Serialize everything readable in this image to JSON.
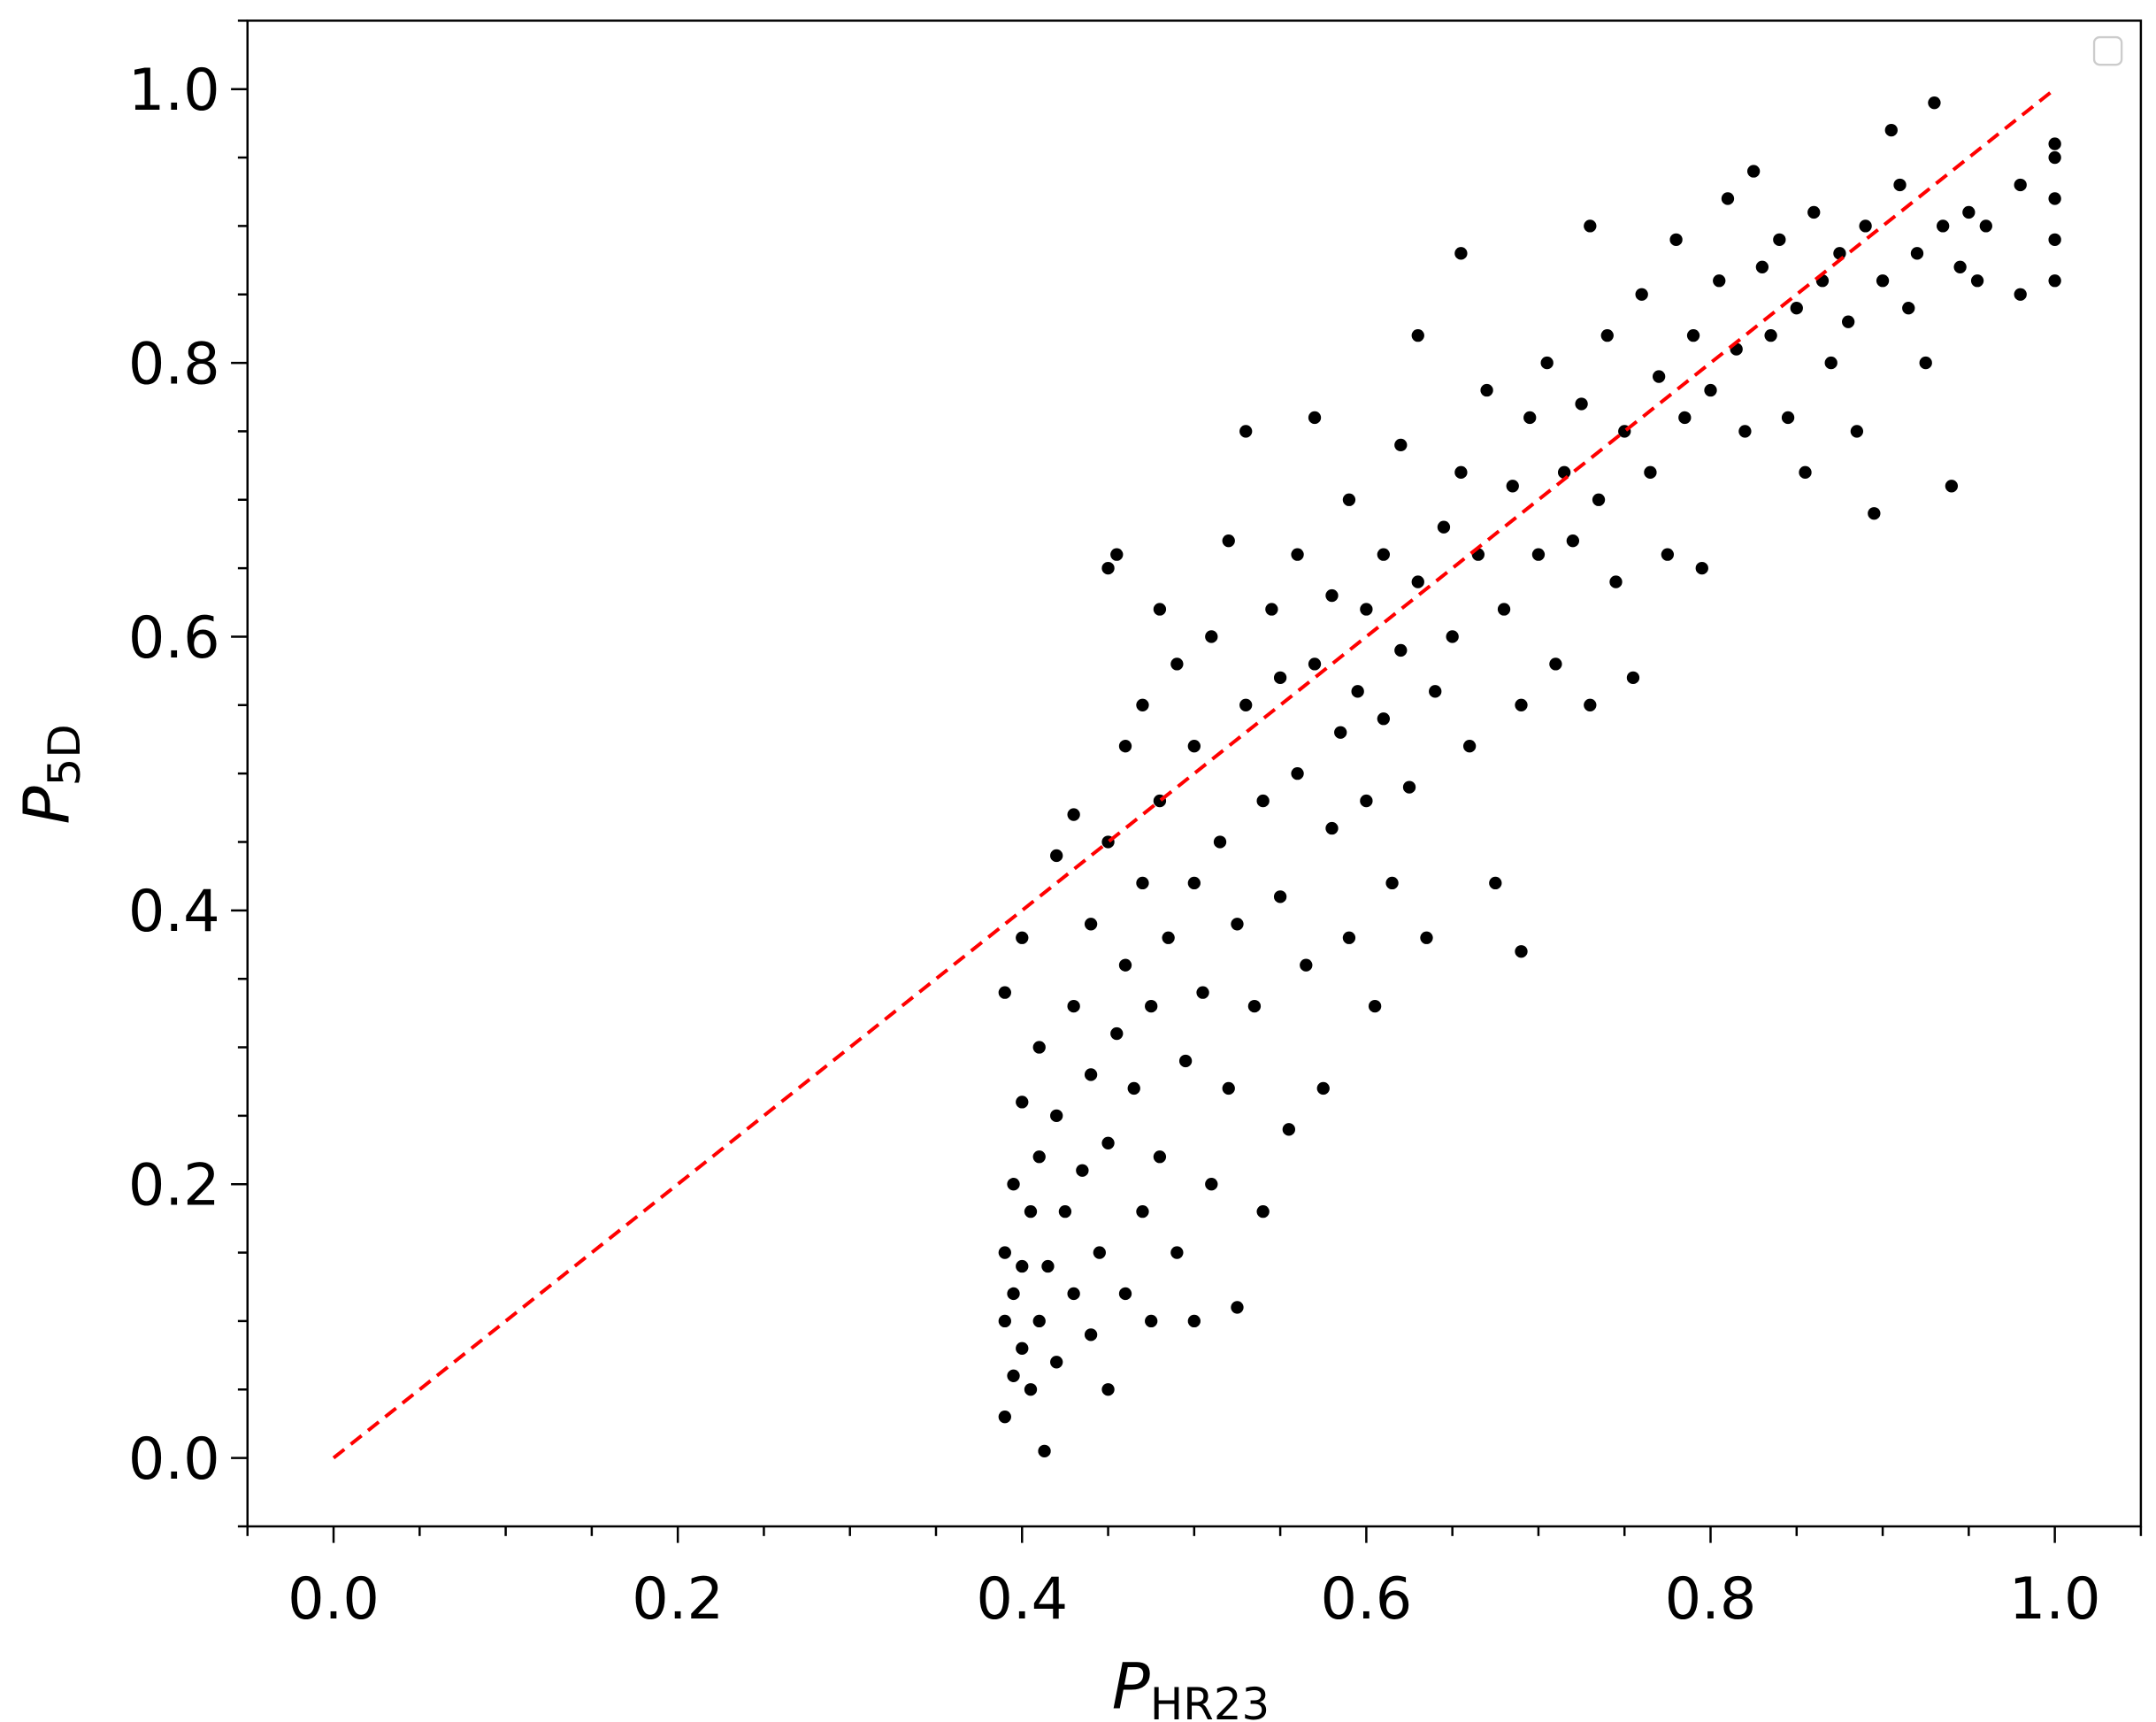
{
  "chart_data": {
    "type": "scatter",
    "xlabel": {
      "main": "P",
      "sub": "HR23"
    },
    "ylabel": {
      "main": "P",
      "sub": "5D"
    },
    "xlim": [
      -0.05,
      1.05
    ],
    "ylim": [
      -0.05,
      1.05
    ],
    "xticks": [
      {
        "value": 0,
        "label": "0.0"
      },
      {
        "value": 0.2,
        "label": "0.2"
      },
      {
        "value": 0.4,
        "label": "0.4"
      },
      {
        "value": 0.6,
        "label": "0.6"
      },
      {
        "value": 0.8,
        "label": "0.8"
      },
      {
        "value": 1,
        "label": "1.0"
      }
    ],
    "yticks": [
      {
        "value": 0,
        "label": "0.0"
      },
      {
        "value": 0.2,
        "label": "0.2"
      },
      {
        "value": 0.4,
        "label": "0.4"
      },
      {
        "value": 0.6,
        "label": "0.6"
      },
      {
        "value": 0.8,
        "label": "0.8"
      },
      {
        "value": 1,
        "label": "1.0"
      }
    ],
    "xminorticks": [
      -0.05,
      0.05,
      0.1,
      0.15,
      0.25,
      0.3,
      0.35,
      0.45,
      0.5,
      0.55,
      0.65,
      0.7,
      0.75,
      0.85,
      0.9,
      0.95,
      1.05
    ],
    "yminorticks": [
      -0.05,
      0.05,
      0.1,
      0.15,
      0.25,
      0.3,
      0.35,
      0.45,
      0.5,
      0.55,
      0.65,
      0.7,
      0.75,
      0.85,
      0.9,
      0.95,
      1.05
    ],
    "legend": "upper right",
    "series": [
      {
        "color": "#000000",
        "x": [
          0.39,
          0.39,
          0.39,
          0.39,
          0.395,
          0.395,
          0.395,
          0.4,
          0.4,
          0.4,
          0.4,
          0.405,
          0.405,
          0.41,
          0.41,
          0.41,
          0.413,
          0.415,
          0.42,
          0.42,
          0.42,
          0.425,
          0.43,
          0.43,
          0.43,
          0.435,
          0.44,
          0.44,
          0.44,
          0.445,
          0.45,
          0.45,
          0.45,
          0.45,
          0.455,
          0.455,
          0.46,
          0.46,
          0.46,
          0.465,
          0.47,
          0.47,
          0.47,
          0.475,
          0.475,
          0.48,
          0.48,
          0.48,
          0.485,
          0.49,
          0.49,
          0.495,
          0.5,
          0.5,
          0.5,
          0.505,
          0.51,
          0.51,
          0.515,
          0.52,
          0.52,
          0.525,
          0.525,
          0.53,
          0.53,
          0.535,
          0.54,
          0.54,
          0.545,
          0.55,
          0.55,
          0.555,
          0.56,
          0.56,
          0.565,
          0.57,
          0.57,
          0.575,
          0.58,
          0.58,
          0.585,
          0.59,
          0.59,
          0.595,
          0.6,
          0.6,
          0.605,
          0.61,
          0.61,
          0.615,
          0.62,
          0.62,
          0.625,
          0.63,
          0.63,
          0.635,
          0.64,
          0.645,
          0.65,
          0.655,
          0.655,
          0.66,
          0.665,
          0.67,
          0.675,
          0.68,
          0.685,
          0.69,
          0.69,
          0.695,
          0.7,
          0.705,
          0.71,
          0.715,
          0.72,
          0.725,
          0.73,
          0.73,
          0.735,
          0.74,
          0.745,
          0.75,
          0.755,
          0.76,
          0.765,
          0.77,
          0.775,
          0.78,
          0.785,
          0.79,
          0.795,
          0.8,
          0.805,
          0.81,
          0.815,
          0.82,
          0.825,
          0.83,
          0.835,
          0.84,
          0.845,
          0.85,
          0.855,
          0.86,
          0.865,
          0.87,
          0.875,
          0.88,
          0.885,
          0.89,
          0.895,
          0.9,
          0.905,
          0.91,
          0.915,
          0.92,
          0.925,
          0.93,
          0.935,
          0.94,
          0.945,
          0.95,
          0.955,
          0.96,
          0.98,
          0.98,
          1.0,
          1.0,
          1.0,
          1.0,
          1.0
        ],
        "y": [
          0.03,
          0.1,
          0.15,
          0.34,
          0.06,
          0.12,
          0.2,
          0.08,
          0.14,
          0.26,
          0.38,
          0.05,
          0.18,
          0.1,
          0.22,
          0.3,
          0.005,
          0.14,
          0.44,
          0.07,
          0.25,
          0.18,
          0.12,
          0.33,
          0.47,
          0.21,
          0.09,
          0.28,
          0.39,
          0.15,
          0.05,
          0.23,
          0.45,
          0.65,
          0.66,
          0.31,
          0.12,
          0.36,
          0.52,
          0.27,
          0.18,
          0.42,
          0.55,
          0.1,
          0.33,
          0.22,
          0.48,
          0.62,
          0.38,
          0.15,
          0.58,
          0.29,
          0.42,
          0.1,
          0.52,
          0.34,
          0.6,
          0.2,
          0.45,
          0.27,
          0.67,
          0.11,
          0.39,
          0.55,
          0.75,
          0.33,
          0.48,
          0.18,
          0.62,
          0.41,
          0.57,
          0.24,
          0.5,
          0.66,
          0.36,
          0.76,
          0.58,
          0.27,
          0.46,
          0.63,
          0.53,
          0.38,
          0.7,
          0.56,
          0.48,
          0.62,
          0.33,
          0.66,
          0.54,
          0.42,
          0.59,
          0.74,
          0.49,
          0.82,
          0.64,
          0.38,
          0.56,
          0.68,
          0.6,
          0.88,
          0.72,
          0.52,
          0.66,
          0.78,
          0.42,
          0.62,
          0.71,
          0.37,
          0.55,
          0.76,
          0.66,
          0.8,
          0.58,
          0.72,
          0.67,
          0.77,
          0.9,
          0.55,
          0.7,
          0.82,
          0.64,
          0.75,
          0.57,
          0.85,
          0.72,
          0.79,
          0.66,
          0.89,
          0.76,
          0.82,
          0.65,
          0.78,
          0.86,
          0.92,
          0.81,
          0.75,
          0.94,
          0.87,
          0.82,
          0.89,
          0.76,
          0.84,
          0.72,
          0.91,
          0.86,
          0.8,
          0.88,
          0.83,
          0.75,
          0.9,
          0.69,
          0.86,
          0.97,
          0.93,
          0.84,
          0.88,
          0.8,
          0.99,
          0.9,
          0.71,
          0.87,
          0.91,
          0.86,
          0.9,
          0.93,
          0.85,
          0.86,
          0.89,
          0.92,
          0.95,
          0.96
        ]
      }
    ],
    "reference_line": {
      "x": [
        0,
        1
      ],
      "y": [
        0,
        1
      ],
      "color": "#ff0000",
      "style": "dashed"
    }
  }
}
